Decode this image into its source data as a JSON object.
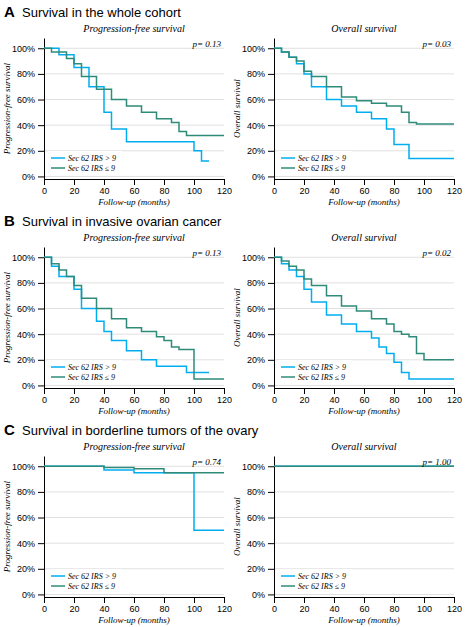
{
  "chart_data": [
    {
      "type": "step",
      "title": "Progression-free survival",
      "panel_label": "A",
      "panel_title": "Survival in the whole cohort",
      "xlabel": "Follow-up (months)",
      "ylabel": "Progression-free survival",
      "annotations": [
        "p= 0.13"
      ],
      "series": [
        {
          "name": "Sec 62 IRS > 9",
          "color": "#00AEEF",
          "x": [
            0,
            10,
            20,
            30,
            40,
            45,
            55,
            65,
            75,
            80,
            100,
            105,
            110
          ],
          "values": [
            1.0,
            0.95,
            0.85,
            0.7,
            0.5,
            0.37,
            0.27,
            0.27,
            0.27,
            0.27,
            0.2,
            0.12,
            0.12
          ]
        },
        {
          "name": "Sec 62 IRS ≤ 9",
          "color": "#2E8B7A",
          "x": [
            0,
            5,
            15,
            20,
            25,
            35,
            45,
            55,
            65,
            75,
            85,
            90,
            95,
            110,
            120
          ],
          "values": [
            1.0,
            0.97,
            0.92,
            0.88,
            0.78,
            0.68,
            0.6,
            0.55,
            0.5,
            0.45,
            0.42,
            0.35,
            0.32,
            0.32,
            0.32
          ]
        }
      ],
      "xlim": [
        0,
        120
      ],
      "ylim": [
        -0.02,
        1.08
      ],
      "xticks": [
        0,
        20,
        40,
        60,
        80,
        100,
        120
      ],
      "yticks": [
        {
          "value": 0.0,
          "label": "0%"
        },
        {
          "value": 0.2,
          "label": "20%"
        },
        {
          "value": 0.4,
          "label": "40%"
        },
        {
          "value": 0.6,
          "label": "60%"
        },
        {
          "value": 0.8,
          "label": "80%"
        },
        {
          "value": 1.0,
          "label": "100%"
        }
      ],
      "grid": "y",
      "legend": "lower left"
    },
    {
      "type": "step",
      "title": "Overall survival",
      "xlabel": "Follow-up (months)",
      "ylabel": "Overall survival",
      "annotations": [
        "p= 0.03"
      ],
      "series": [
        {
          "name": "Sec 62 IRS > 9",
          "color": "#00AEEF",
          "x": [
            0,
            5,
            10,
            15,
            20,
            25,
            35,
            45,
            55,
            65,
            75,
            80,
            85,
            90,
            95,
            100,
            110,
            120
          ],
          "values": [
            1.0,
            0.97,
            0.93,
            0.88,
            0.8,
            0.7,
            0.6,
            0.55,
            0.5,
            0.45,
            0.37,
            0.25,
            0.25,
            0.14,
            0.14,
            0.14,
            0.14,
            0.14
          ]
        },
        {
          "name": "Sec 62 IRS ≤ 9",
          "color": "#2E8B7A",
          "x": [
            0,
            5,
            10,
            15,
            20,
            25,
            35,
            45,
            55,
            65,
            75,
            85,
            90,
            95,
            100,
            120
          ],
          "values": [
            1.0,
            0.97,
            0.93,
            0.9,
            0.82,
            0.78,
            0.7,
            0.62,
            0.59,
            0.57,
            0.55,
            0.5,
            0.42,
            0.41,
            0.41,
            0.41
          ]
        }
      ],
      "xlim": [
        0,
        120
      ],
      "ylim": [
        -0.02,
        1.08
      ],
      "xticks": [
        0,
        20,
        40,
        60,
        80,
        100,
        120
      ],
      "yticks": [
        {
          "value": 0.0,
          "label": "0%"
        },
        {
          "value": 0.2,
          "label": "20%"
        },
        {
          "value": 0.4,
          "label": "40%"
        },
        {
          "value": 0.6,
          "label": "60%"
        },
        {
          "value": 0.8,
          "label": "80%"
        },
        {
          "value": 1.0,
          "label": "100%"
        }
      ],
      "grid": "y",
      "legend": "lower left"
    },
    {
      "type": "step",
      "title": "Progression-free survival",
      "panel_label": "B",
      "panel_title": "Survival in invasive ovarian cancer",
      "xlabel": "Follow-up (months)",
      "ylabel": "Progression-free survival",
      "annotations": [
        "p= 0.13"
      ],
      "series": [
        {
          "name": "Sec 62 IRS > 9",
          "color": "#00AEEF",
          "x": [
            0,
            5,
            10,
            20,
            25,
            35,
            40,
            45,
            55,
            65,
            75,
            80,
            95,
            100,
            110
          ],
          "values": [
            1.0,
            0.93,
            0.85,
            0.75,
            0.6,
            0.5,
            0.42,
            0.35,
            0.27,
            0.2,
            0.15,
            0.15,
            0.1,
            0.1,
            0.1
          ]
        },
        {
          "name": "Sec 62 IRS ≤ 9",
          "color": "#2E8B7A",
          "x": [
            0,
            5,
            10,
            15,
            20,
            25,
            35,
            45,
            55,
            65,
            75,
            80,
            85,
            90,
            100,
            110,
            120
          ],
          "values": [
            1.0,
            0.95,
            0.9,
            0.85,
            0.78,
            0.68,
            0.6,
            0.52,
            0.45,
            0.42,
            0.38,
            0.35,
            0.3,
            0.28,
            0.05,
            0.05,
            0.05
          ]
        }
      ],
      "xlim": [
        0,
        120
      ],
      "ylim": [
        -0.02,
        1.08
      ],
      "xticks": [
        0,
        20,
        40,
        60,
        80,
        100,
        120
      ],
      "yticks": [
        {
          "value": 0.0,
          "label": "0%"
        },
        {
          "value": 0.2,
          "label": "20%"
        },
        {
          "value": 0.4,
          "label": "40%"
        },
        {
          "value": 0.6,
          "label": "60%"
        },
        {
          "value": 0.8,
          "label": "80%"
        },
        {
          "value": 1.0,
          "label": "100%"
        }
      ],
      "grid": "y",
      "legend": "lower left"
    },
    {
      "type": "step",
      "title": "Overall survival",
      "xlabel": "Follow-up (months)",
      "ylabel": "Overall survival",
      "annotations": [
        "p= 0.02"
      ],
      "series": [
        {
          "name": "Sec 62 IRS > 9",
          "color": "#00AEEF",
          "x": [
            0,
            5,
            10,
            15,
            20,
            25,
            35,
            45,
            55,
            65,
            70,
            75,
            80,
            85,
            90,
            100,
            110,
            120
          ],
          "values": [
            1.0,
            0.95,
            0.9,
            0.85,
            0.75,
            0.65,
            0.55,
            0.48,
            0.42,
            0.37,
            0.3,
            0.25,
            0.18,
            0.1,
            0.05,
            0.05,
            0.05,
            0.05
          ]
        },
        {
          "name": "Sec 62 IRS ≤ 9",
          "color": "#2E8B7A",
          "x": [
            0,
            5,
            10,
            15,
            20,
            25,
            35,
            45,
            55,
            65,
            75,
            80,
            85,
            90,
            95,
            100,
            110,
            120
          ],
          "values": [
            1.0,
            0.97,
            0.93,
            0.9,
            0.83,
            0.78,
            0.7,
            0.62,
            0.58,
            0.52,
            0.48,
            0.42,
            0.4,
            0.38,
            0.25,
            0.2,
            0.2,
            0.2
          ]
        }
      ],
      "xlim": [
        0,
        120
      ],
      "ylim": [
        -0.02,
        1.08
      ],
      "xticks": [
        0,
        20,
        40,
        60,
        80,
        100,
        120
      ],
      "yticks": [
        {
          "value": 0.0,
          "label": "0%"
        },
        {
          "value": 0.2,
          "label": "20%"
        },
        {
          "value": 0.4,
          "label": "40%"
        },
        {
          "value": 0.6,
          "label": "60%"
        },
        {
          "value": 0.8,
          "label": "80%"
        },
        {
          "value": 1.0,
          "label": "100%"
        }
      ],
      "grid": "y",
      "legend": "lower left"
    },
    {
      "type": "step",
      "title": "Progression-free survival",
      "panel_label": "C",
      "panel_title": "Survival in borderline tumors of the ovary",
      "xlabel": "Follow-up (months)",
      "ylabel": "Progression-free survival",
      "annotations": [
        "p= 0.74"
      ],
      "series": [
        {
          "name": "Sec 62 IRS > 9",
          "color": "#00AEEF",
          "x": [
            0,
            20,
            40,
            60,
            80,
            95,
            100,
            120
          ],
          "values": [
            1.0,
            1.0,
            0.97,
            0.95,
            0.95,
            0.95,
            0.5,
            0.5
          ]
        },
        {
          "name": "Sec 62 IRS ≤ 9",
          "color": "#2E8B7A",
          "x": [
            0,
            20,
            40,
            60,
            80,
            95,
            100,
            120
          ],
          "values": [
            1.0,
            1.0,
            0.99,
            0.98,
            0.95,
            0.95,
            0.95,
            0.95
          ]
        }
      ],
      "xlim": [
        0,
        120
      ],
      "ylim": [
        -0.02,
        1.08
      ],
      "xticks": [
        0,
        20,
        40,
        60,
        80,
        100,
        120
      ],
      "yticks": [
        {
          "value": 0.0,
          "label": "0%"
        },
        {
          "value": 0.2,
          "label": "20%"
        },
        {
          "value": 0.4,
          "label": "40%"
        },
        {
          "value": 0.6,
          "label": "60%"
        },
        {
          "value": 0.8,
          "label": "80%"
        },
        {
          "value": 1.0,
          "label": "100%"
        }
      ],
      "grid": "y",
      "legend": "lower left"
    },
    {
      "type": "step",
      "title": "Overall survival",
      "xlabel": "Follow-up (months)",
      "ylabel": "Overall survival",
      "annotations": [
        "p= 1.00"
      ],
      "series": [
        {
          "name": "Sec 62 IRS > 9",
          "color": "#00AEEF",
          "x": [
            0,
            20,
            40,
            60,
            80,
            100,
            120
          ],
          "values": [
            1.0,
            1.0,
            1.0,
            1.0,
            1.0,
            1.0,
            1.0
          ]
        },
        {
          "name": "Sec 62 IRS ≤ 9",
          "color": "#2E8B7A",
          "x": [
            0,
            20,
            40,
            60,
            80,
            100,
            120
          ],
          "values": [
            1.0,
            1.0,
            1.0,
            1.0,
            1.0,
            1.0,
            1.0
          ]
        }
      ],
      "xlim": [
        0,
        120
      ],
      "ylim": [
        -0.02,
        1.08
      ],
      "xticks": [
        0,
        20,
        40,
        60,
        80,
        100,
        120
      ],
      "yticks": [
        {
          "value": 0.0,
          "label": "0%"
        },
        {
          "value": 0.2,
          "label": "20%"
        },
        {
          "value": 0.4,
          "label": "40%"
        },
        {
          "value": 0.6,
          "label": "60%"
        },
        {
          "value": 0.8,
          "label": "80%"
        },
        {
          "value": 1.0,
          "label": "100%"
        }
      ],
      "grid": "y",
      "legend": "lower left"
    }
  ]
}
